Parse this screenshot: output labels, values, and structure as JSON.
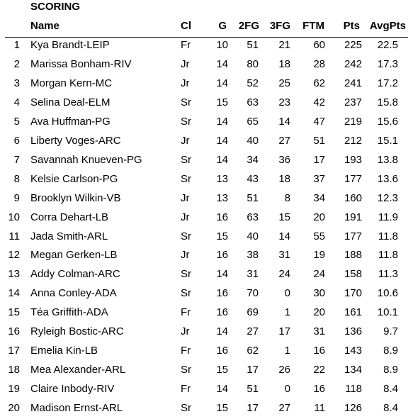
{
  "title": "SCORING",
  "columns": [
    "Name",
    "Cl",
    "G",
    "2FG",
    "3FG",
    "FTM",
    "Pts",
    "AvgPts"
  ],
  "rows": [
    {
      "rank": "1",
      "name": "Kya Brandt-LEIP",
      "cl": "Fr",
      "g": "10",
      "fg2": "51",
      "fg3": "21",
      "ftm": "60",
      "pts": "225",
      "avg": "22.5"
    },
    {
      "rank": "2",
      "name": "Marissa Bonham-RIV",
      "cl": "Jr",
      "g": "14",
      "fg2": "80",
      "fg3": "18",
      "ftm": "28",
      "pts": "242",
      "avg": "17.3"
    },
    {
      "rank": "3",
      "name": "Morgan Kern-MC",
      "cl": "Jr",
      "g": "14",
      "fg2": "52",
      "fg3": "25",
      "ftm": "62",
      "pts": "241",
      "avg": "17.2"
    },
    {
      "rank": "4",
      "name": "Selina Deal-ELM",
      "cl": "Sr",
      "g": "15",
      "fg2": "63",
      "fg3": "23",
      "ftm": "42",
      "pts": "237",
      "avg": "15.8"
    },
    {
      "rank": "5",
      "name": "Ava Huffman-PG",
      "cl": "Sr",
      "g": "14",
      "fg2": "65",
      "fg3": "14",
      "ftm": "47",
      "pts": "219",
      "avg": "15.6"
    },
    {
      "rank": "6",
      "name": "Liberty Voges-ARC",
      "cl": "Jr",
      "g": "14",
      "fg2": "40",
      "fg3": "27",
      "ftm": "51",
      "pts": "212",
      "avg": "15.1"
    },
    {
      "rank": "7",
      "name": "Savannah Knueven-PG",
      "cl": "Sr",
      "g": "14",
      "fg2": "34",
      "fg3": "36",
      "ftm": "17",
      "pts": "193",
      "avg": "13.8"
    },
    {
      "rank": "8",
      "name": "Kelsie Carlson-PG",
      "cl": "Sr",
      "g": "13",
      "fg2": "43",
      "fg3": "18",
      "ftm": "37",
      "pts": "177",
      "avg": "13.6"
    },
    {
      "rank": "9",
      "name": "Brooklyn Wilkin-VB",
      "cl": "Jr",
      "g": "13",
      "fg2": "51",
      "fg3": "8",
      "ftm": "34",
      "pts": "160",
      "avg": "12.3"
    },
    {
      "rank": "10",
      "name": "Corra Dehart-LB",
      "cl": "Jr",
      "g": "16",
      "fg2": "63",
      "fg3": "15",
      "ftm": "20",
      "pts": "191",
      "avg": "11.9"
    },
    {
      "rank": "11",
      "name": "Jada Smith-ARL",
      "cl": "Sr",
      "g": "15",
      "fg2": "40",
      "fg3": "14",
      "ftm": "55",
      "pts": "177",
      "avg": "11.8"
    },
    {
      "rank": "12",
      "name": "Megan Gerken-LB",
      "cl": "Jr",
      "g": "16",
      "fg2": "38",
      "fg3": "31",
      "ftm": "19",
      "pts": "188",
      "avg": "11.8"
    },
    {
      "rank": "13",
      "name": "Addy Colman-ARC",
      "cl": "Sr",
      "g": "14",
      "fg2": "31",
      "fg3": "24",
      "ftm": "24",
      "pts": "158",
      "avg": "11.3"
    },
    {
      "rank": "14",
      "name": "Anna Conley-ADA",
      "cl": "Sr",
      "g": "16",
      "fg2": "70",
      "fg3": "0",
      "ftm": "30",
      "pts": "170",
      "avg": "10.6"
    },
    {
      "rank": "15",
      "name": "Téa Griffith-ADA",
      "cl": "Fr",
      "g": "16",
      "fg2": "69",
      "fg3": "1",
      "ftm": "20",
      "pts": "161",
      "avg": "10.1"
    },
    {
      "rank": "16",
      "name": "Ryleigh Bostic-ARC",
      "cl": "Jr",
      "g": "14",
      "fg2": "27",
      "fg3": "17",
      "ftm": "31",
      "pts": "136",
      "avg": "9.7"
    },
    {
      "rank": "17",
      "name": "Emelia Kin-LB",
      "cl": "Fr",
      "g": "16",
      "fg2": "62",
      "fg3": "1",
      "ftm": "16",
      "pts": "143",
      "avg": "8.9"
    },
    {
      "rank": "18",
      "name": "Mea Alexander-ARL",
      "cl": "Sr",
      "g": "15",
      "fg2": "17",
      "fg3": "26",
      "ftm": "22",
      "pts": "134",
      "avg": "8.9"
    },
    {
      "rank": "19",
      "name": "Claire Inbody-RIV",
      "cl": "Fr",
      "g": "14",
      "fg2": "51",
      "fg3": "0",
      "ftm": "16",
      "pts": "118",
      "avg": "8.4"
    },
    {
      "rank": "20",
      "name": "Madison Ernst-ARL",
      "cl": "Sr",
      "g": "15",
      "fg2": "17",
      "fg3": "27",
      "ftm": "11",
      "pts": "126",
      "avg": "8.4"
    }
  ]
}
